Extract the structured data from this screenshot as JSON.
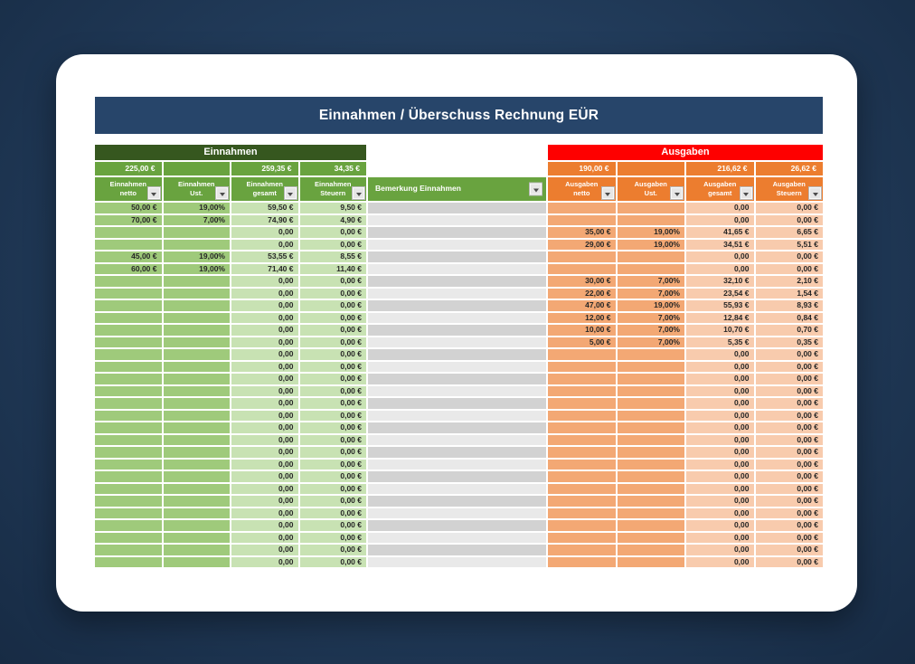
{
  "page_title": "Einnahmen / Überschuss Rechnung EÜR",
  "colors": {
    "background_navy": "#223c5b",
    "titlebar_navy": "#27456a",
    "einnahmen_banner_green": "#36571f",
    "einnahmen_header_green": "#69a33f",
    "einnahmen_cell_green_mid": "#9fca7b",
    "einnahmen_cell_green_light": "#c8e2b3",
    "ausgaben_banner_red": "#fe0000",
    "ausgaben_header_orange": "#ec7d2f",
    "ausgaben_cell_orange_mid": "#f3a874",
    "ausgaben_cell_orange_light": "#f8cbad",
    "bemerkung_gray_dark": "#d2d2d2",
    "bemerkung_gray_light": "#e9e9e9"
  },
  "einnahmen": {
    "banner_label": "Einnahmen",
    "totals": {
      "netto": "225,00 €",
      "ust": "",
      "gesamt": "259,35 €",
      "steuern": "34,35 €"
    },
    "columns": [
      {
        "line1": "Einnahmen",
        "line2": "netto"
      },
      {
        "line1": "Einnahmen",
        "line2": "Ust."
      },
      {
        "line1": "Einnahmen",
        "line2": "gesamt"
      },
      {
        "line1": "Einnahmen",
        "line2": "Steuern"
      }
    ],
    "bemerkung_label": "Bemerkung Einnahmen",
    "rows": [
      [
        "50,00 €",
        "19,00%",
        "59,50 €",
        "9,50 €"
      ],
      [
        "70,00 €",
        "7,00%",
        "74,90 €",
        "4,90 €"
      ],
      [
        "",
        "",
        "0,00",
        "0,00 €"
      ],
      [
        "",
        "",
        "0,00",
        "0,00 €"
      ],
      [
        "45,00 €",
        "19,00%",
        "53,55 €",
        "8,55 €"
      ],
      [
        "60,00 €",
        "19,00%",
        "71,40 €",
        "11,40 €"
      ],
      [
        "",
        "",
        "0,00",
        "0,00 €"
      ],
      [
        "",
        "",
        "0,00",
        "0,00 €"
      ],
      [
        "",
        "",
        "0,00",
        "0,00 €"
      ],
      [
        "",
        "",
        "0,00",
        "0,00 €"
      ],
      [
        "",
        "",
        "0,00",
        "0,00 €"
      ],
      [
        "",
        "",
        "0,00",
        "0,00 €"
      ],
      [
        "",
        "",
        "0,00",
        "0,00 €"
      ],
      [
        "",
        "",
        "0,00",
        "0,00 €"
      ],
      [
        "",
        "",
        "0,00",
        "0,00 €"
      ],
      [
        "",
        "",
        "0,00",
        "0,00 €"
      ],
      [
        "",
        "",
        "0,00",
        "0,00 €"
      ],
      [
        "",
        "",
        "0,00",
        "0,00 €"
      ],
      [
        "",
        "",
        "0,00",
        "0,00 €"
      ],
      [
        "",
        "",
        "0,00",
        "0,00 €"
      ],
      [
        "",
        "",
        "0,00",
        "0,00 €"
      ],
      [
        "",
        "",
        "0,00",
        "0,00 €"
      ],
      [
        "",
        "",
        "0,00",
        "0,00 €"
      ],
      [
        "",
        "",
        "0,00",
        "0,00 €"
      ],
      [
        "",
        "",
        "0,00",
        "0,00 €"
      ],
      [
        "",
        "",
        "0,00",
        "0,00 €"
      ],
      [
        "",
        "",
        "0,00",
        "0,00 €"
      ],
      [
        "",
        "",
        "0,00",
        "0,00 €"
      ],
      [
        "",
        "",
        "0,00",
        "0,00 €"
      ],
      [
        "",
        "",
        "0,00",
        "0,00 €"
      ]
    ]
  },
  "ausgaben": {
    "banner_label": "Ausgaben",
    "totals": {
      "netto": "190,00 €",
      "ust": "",
      "gesamt": "216,62 €",
      "steuern": "26,62 €"
    },
    "columns": [
      {
        "line1": "Ausgaben",
        "line2": "netto"
      },
      {
        "line1": "Ausgaben",
        "line2": "Ust."
      },
      {
        "line1": "Ausgaben",
        "line2": "gesamt"
      },
      {
        "line1": "Ausgaben",
        "line2": "Steuern"
      }
    ],
    "rows": [
      [
        "",
        "",
        "0,00",
        "0,00 €"
      ],
      [
        "",
        "",
        "0,00",
        "0,00 €"
      ],
      [
        "35,00 €",
        "19,00%",
        "41,65 €",
        "6,65 €"
      ],
      [
        "29,00 €",
        "19,00%",
        "34,51 €",
        "5,51 €"
      ],
      [
        "",
        "",
        "0,00",
        "0,00 €"
      ],
      [
        "",
        "",
        "0,00",
        "0,00 €"
      ],
      [
        "30,00 €",
        "7,00%",
        "32,10 €",
        "2,10 €"
      ],
      [
        "22,00 €",
        "7,00%",
        "23,54 €",
        "1,54 €"
      ],
      [
        "47,00 €",
        "19,00%",
        "55,93 €",
        "8,93 €"
      ],
      [
        "12,00 €",
        "7,00%",
        "12,84 €",
        "0,84 €"
      ],
      [
        "10,00 €",
        "7,00%",
        "10,70 €",
        "0,70 €"
      ],
      [
        "5,00 €",
        "7,00%",
        "5,35 €",
        "0,35 €"
      ],
      [
        "",
        "",
        "0,00",
        "0,00 €"
      ],
      [
        "",
        "",
        "0,00",
        "0,00 €"
      ],
      [
        "",
        "",
        "0,00",
        "0,00 €"
      ],
      [
        "",
        "",
        "0,00",
        "0,00 €"
      ],
      [
        "",
        "",
        "0,00",
        "0,00 €"
      ],
      [
        "",
        "",
        "0,00",
        "0,00 €"
      ],
      [
        "",
        "",
        "0,00",
        "0,00 €"
      ],
      [
        "",
        "",
        "0,00",
        "0,00 €"
      ],
      [
        "",
        "",
        "0,00",
        "0,00 €"
      ],
      [
        "",
        "",
        "0,00",
        "0,00 €"
      ],
      [
        "",
        "",
        "0,00",
        "0,00 €"
      ],
      [
        "",
        "",
        "0,00",
        "0,00 €"
      ],
      [
        "",
        "",
        "0,00",
        "0,00 €"
      ],
      [
        "",
        "",
        "0,00",
        "0,00 €"
      ],
      [
        "",
        "",
        "0,00",
        "0,00 €"
      ],
      [
        "",
        "",
        "0,00",
        "0,00 €"
      ],
      [
        "",
        "",
        "0,00",
        "0,00 €"
      ],
      [
        "",
        "",
        "0,00",
        "0,00 €"
      ]
    ]
  }
}
